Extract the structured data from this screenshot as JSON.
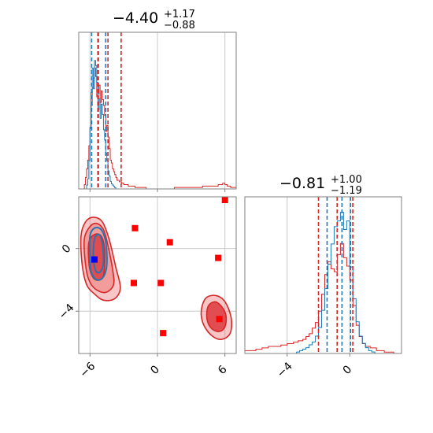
{
  "colors": {
    "blue": "#1f77b4",
    "red": "#d62728",
    "red_fill": "#f08080",
    "marker_red": "#ff0000",
    "marker_blue": "#0000ff",
    "grid": "#c8c8c8",
    "frame": "#808080"
  },
  "titles": {
    "param1": {
      "value": "−4.40",
      "upper": "+1.17",
      "lower": "−0.88"
    },
    "param2": {
      "value": "−0.81",
      "upper": "+1.00",
      "lower": "−1.19"
    }
  },
  "chart_data": {
    "type": "corner",
    "params": [
      {
        "range": [
          -7.0,
          7.0
        ],
        "ticks": [
          -6,
          0,
          6
        ],
        "tick_labels": [
          "−6",
          "0",
          "6"
        ]
      },
      {
        "range": [
          -6.7,
          3.3
        ],
        "ticks": [
          -4,
          0
        ],
        "tick_labels": [
          "−4",
          "0"
        ]
      }
    ],
    "grid": true,
    "legend": "none",
    "marginals": [
      {
        "param": 0,
        "blue_quantiles": [
          -5.85,
          -5.25,
          -4.6
        ],
        "red_quantiles": [
          -5.3,
          -4.4,
          -3.23
        ],
        "blue_hist": {
          "x": [
            -6.4,
            -6.3,
            -6.2,
            -6.1,
            -6.0,
            -5.9,
            -5.8,
            -5.7,
            -5.6,
            -5.5,
            -5.4,
            -5.3,
            -5.2,
            -5.1,
            -5.0,
            -4.9,
            -4.8,
            -4.7,
            -4.6,
            -4.5,
            -4.4,
            -4.3,
            -4.2,
            -4.1,
            -4.0,
            -3.9,
            -3.8,
            -3.7
          ],
          "y": [
            0.0,
            0.03,
            0.08,
            0.22,
            0.48,
            0.75,
            0.94,
            0.78,
            1.0,
            0.96,
            0.83,
            0.62,
            0.7,
            0.55,
            0.66,
            0.58,
            0.46,
            0.38,
            0.28,
            0.22,
            0.14,
            0.1,
            0.06,
            0.04,
            0.03,
            0.02,
            0.01,
            0.0
          ]
        },
        "red_hist": {
          "x": [
            -7.0,
            -6.5,
            -6.4,
            -6.3,
            -6.2,
            -6.1,
            -6.0,
            -5.9,
            -5.8,
            -5.7,
            -5.6,
            -5.5,
            -5.4,
            -5.3,
            -5.2,
            -5.1,
            -5.0,
            -4.9,
            -4.8,
            -4.7,
            -4.6,
            -4.5,
            -4.4,
            -4.3,
            -4.2,
            -4.1,
            -4.0,
            -3.9,
            -3.8,
            -3.7,
            -3.6,
            -3.4,
            -3.2,
            -3.0,
            -2.8,
            -2.6,
            -2.3,
            -2.0,
            -1.6,
            -1.0,
            0.0,
            1.5,
            3.0,
            4.0,
            4.8,
            5.4,
            5.8,
            6.0,
            6.2,
            6.5,
            7.0
          ],
          "y": [
            0.0,
            0.03,
            0.08,
            0.14,
            0.2,
            0.3,
            0.42,
            0.58,
            0.7,
            0.77,
            0.84,
            0.78,
            0.64,
            0.66,
            0.72,
            0.6,
            0.68,
            0.62,
            0.58,
            0.51,
            0.4,
            0.44,
            0.36,
            0.28,
            0.2,
            0.18,
            0.14,
            0.12,
            0.1,
            0.08,
            0.06,
            0.05,
            0.04,
            0.03,
            0.03,
            0.02,
            0.02,
            0.01,
            0.01,
            0.0,
            0.0,
            0.01,
            0.01,
            0.02,
            0.02,
            0.03,
            0.04,
            0.03,
            0.02,
            0.01,
            0.0
          ]
        }
      },
      {
        "param": 1,
        "blue_quantiles": [
          -1.45,
          -0.5,
          0.05
        ],
        "red_quantiles": [
          -2.0,
          -0.81,
          0.19
        ],
        "blue_hist": {
          "x": [
            -3.6,
            -3.4,
            -3.2,
            -3.0,
            -2.8,
            -2.6,
            -2.4,
            -2.2,
            -2.0,
            -1.8,
            -1.6,
            -1.4,
            -1.2,
            -1.0,
            -0.8,
            -0.6,
            -0.4,
            -0.2,
            0.0,
            0.2,
            0.4,
            0.6,
            0.8,
            1.0,
            1.2,
            1.4,
            1.6
          ],
          "y": [
            0.0,
            0.01,
            0.02,
            0.03,
            0.04,
            0.06,
            0.08,
            0.12,
            0.18,
            0.3,
            0.45,
            0.62,
            0.76,
            0.88,
            0.92,
            0.98,
            0.86,
            0.92,
            0.6,
            0.38,
            0.22,
            0.12,
            0.07,
            0.04,
            0.02,
            0.01,
            0.0
          ]
        },
        "red_hist": {
          "x": [
            -6.7,
            -6.0,
            -5.6,
            -5.2,
            -4.8,
            -4.4,
            -4.0,
            -3.6,
            -3.3,
            -3.0,
            -2.8,
            -2.6,
            -2.4,
            -2.2,
            -2.0,
            -1.8,
            -1.6,
            -1.4,
            -1.2,
            -1.0,
            -0.8,
            -0.6,
            -0.4,
            -0.2,
            0.0,
            0.2,
            0.4,
            0.6,
            0.8,
            1.0,
            1.3,
            1.7,
            2.2,
            2.8,
            3.3
          ],
          "y": [
            0.02,
            0.03,
            0.04,
            0.05,
            0.05,
            0.06,
            0.07,
            0.08,
            0.09,
            0.1,
            0.12,
            0.14,
            0.18,
            0.22,
            0.3,
            0.42,
            0.56,
            0.65,
            0.6,
            0.58,
            0.7,
            0.78,
            0.68,
            0.62,
            0.52,
            0.34,
            0.2,
            0.12,
            0.07,
            0.05,
            0.04,
            0.02,
            0.01,
            0.0,
            0.0
          ]
        }
      }
    ],
    "joint": {
      "red_contours": [
        {
          "points": [
            [
              -6.7,
              -1.0
            ],
            [
              -6.8,
              0.8
            ],
            [
              -6.4,
              1.7
            ],
            [
              -5.7,
              2.0
            ],
            [
              -4.9,
              1.7
            ],
            [
              -4.3,
              0.6
            ],
            [
              -3.7,
              -1.2
            ],
            [
              -3.3,
              -2.5
            ],
            [
              -3.8,
              -3.2
            ],
            [
              -4.8,
              -3.3
            ],
            [
              -5.6,
              -2.9
            ],
            [
              -6.3,
              -2.3
            ]
          ]
        },
        {
          "points": [
            [
              -6.4,
              -1.0
            ],
            [
              -6.5,
              0.6
            ],
            [
              -6.0,
              1.4
            ],
            [
              -5.4,
              1.6
            ],
            [
              -4.8,
              1.2
            ],
            [
              -4.4,
              0.2
            ],
            [
              -4.0,
              -1.3
            ],
            [
              -3.9,
              -2.3
            ],
            [
              -4.6,
              -2.8
            ],
            [
              -5.5,
              -2.6
            ],
            [
              -6.1,
              -2.0
            ]
          ]
        },
        {
          "points": [
            [
              -6.1,
              -0.9
            ],
            [
              -6.1,
              0.4
            ],
            [
              -5.6,
              0.9
            ],
            [
              -5.0,
              0.8
            ],
            [
              -4.7,
              0.0
            ],
            [
              -4.7,
              -1.2
            ],
            [
              -4.9,
              -1.9
            ],
            [
              -5.5,
              -2.0
            ],
            [
              -5.9,
              -1.6
            ]
          ]
        },
        {
          "points": [
            [
              4.0,
              -3.6
            ],
            [
              4.4,
              -3.1
            ],
            [
              5.2,
              -3.0
            ],
            [
              5.9,
              -3.3
            ],
            [
              6.4,
              -4.0
            ],
            [
              6.6,
              -4.8
            ],
            [
              6.4,
              -5.5
            ],
            [
              5.7,
              -5.8
            ],
            [
              4.9,
              -5.6
            ],
            [
              4.2,
              -5.0
            ],
            [
              3.9,
              -4.3
            ]
          ]
        },
        {
          "points": [
            [
              4.5,
              -3.7
            ],
            [
              5.1,
              -3.4
            ],
            [
              5.7,
              -3.7
            ],
            [
              6.1,
              -4.3
            ],
            [
              6.0,
              -5.0
            ],
            [
              5.5,
              -5.3
            ],
            [
              4.8,
              -5.1
            ],
            [
              4.4,
              -4.5
            ]
          ]
        }
      ],
      "blue_contours": [
        {
          "points": [
            [
              -6.0,
              -0.6
            ],
            [
              -6.0,
              0.8
            ],
            [
              -5.6,
              1.3
            ],
            [
              -5.0,
              1.2
            ],
            [
              -4.6,
              0.4
            ],
            [
              -4.5,
              -1.0
            ],
            [
              -4.8,
              -1.8
            ],
            [
              -5.4,
              -2.0
            ],
            [
              -5.9,
              -1.5
            ]
          ]
        },
        {
          "points": [
            [
              -5.7,
              -0.5
            ],
            [
              -5.6,
              0.6
            ],
            [
              -5.2,
              0.9
            ],
            [
              -4.9,
              0.3
            ],
            [
              -4.8,
              -0.9
            ],
            [
              -5.1,
              -1.5
            ],
            [
              -5.5,
              -1.4
            ]
          ]
        }
      ],
      "red_markers": [
        {
          "x": 6.0,
          "y": 3.1
        },
        {
          "x": -2.0,
          "y": 1.3
        },
        {
          "x": 1.1,
          "y": 0.4
        },
        {
          "x": 5.4,
          "y": -0.6
        },
        {
          "x": -2.1,
          "y": -2.2
        },
        {
          "x": 0.3,
          "y": -2.2
        },
        {
          "x": 5.5,
          "y": -4.5
        },
        {
          "x": 0.5,
          "y": -5.4
        }
      ],
      "blue_markers": [
        {
          "x": -5.6,
          "y": -0.7
        }
      ]
    }
  }
}
